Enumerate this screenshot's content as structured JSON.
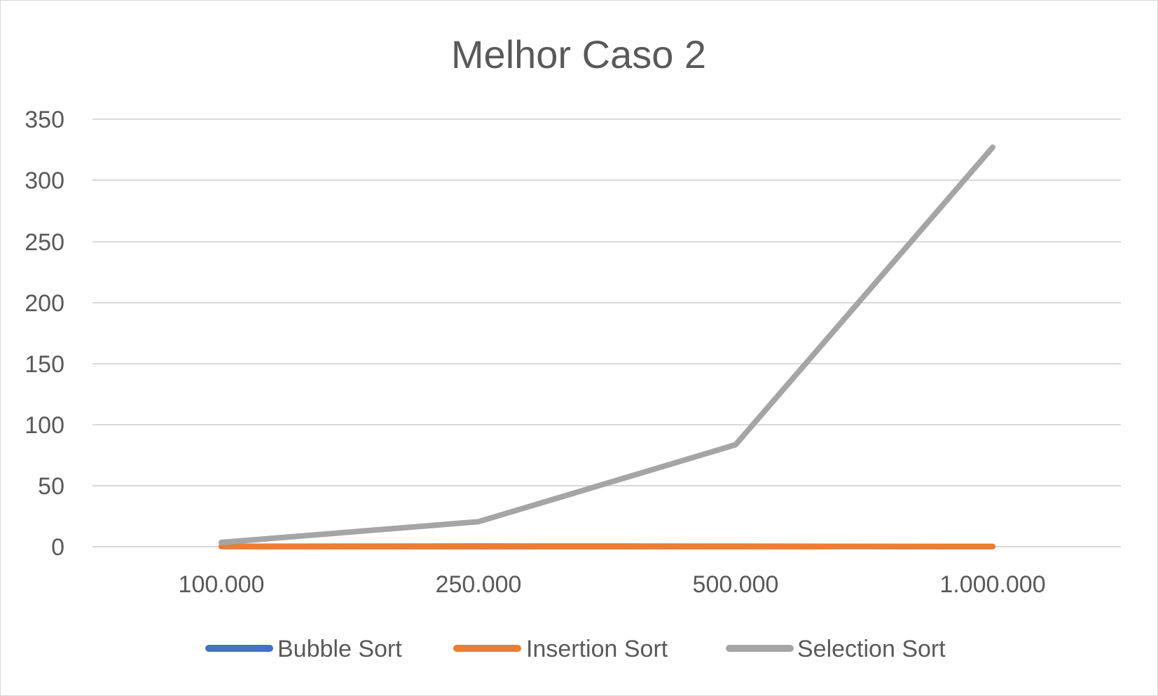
{
  "chart_data": {
    "type": "line",
    "title": "Melhor Caso 2",
    "xlabel": "",
    "ylabel": "",
    "categories": [
      "100.000",
      "250.000",
      "500.000",
      "1.000.000"
    ],
    "y_ticks": [
      "0",
      "50",
      "100",
      "150",
      "200",
      "250",
      "300",
      "350"
    ],
    "ylim": [
      0,
      350
    ],
    "grid": true,
    "legend_position": "bottom",
    "series": [
      {
        "name": "Bubble Sort",
        "color": "#4472C4",
        "values": [
          0.1,
          0.2,
          0.2,
          0.1
        ]
      },
      {
        "name": "Insertion Sort",
        "color": "#ED7D31",
        "values": [
          0.3,
          0.6,
          0.4,
          0.1
        ]
      },
      {
        "name": "Selection Sort",
        "color": "#A5A5A5",
        "values": [
          3.5,
          20.5,
          83.5,
          327
        ]
      }
    ]
  }
}
